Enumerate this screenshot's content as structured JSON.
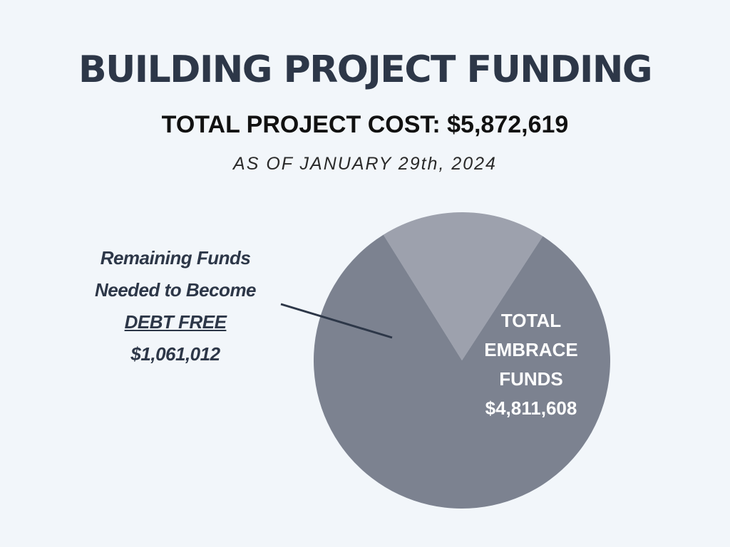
{
  "header": {
    "title": "BUILDING PROJECT FUNDING",
    "subtitle": "TOTAL PROJECT COST: $5,872,619",
    "date": "AS OF JANUARY 29th, 2024"
  },
  "chart_data": {
    "type": "pie",
    "total": 5872619,
    "slices": [
      {
        "name": "Remaining Funds Needed to Become DEBT FREE",
        "value": 1061012,
        "label_lines": [
          "Remaining Funds",
          "Needed to Become",
          "DEBT FREE",
          "$1,061,012"
        ],
        "color": "#9da1ad"
      },
      {
        "name": "TOTAL EMBRACE FUNDS",
        "value": 4811608,
        "label_lines": [
          "TOTAL",
          "EMBRACE",
          "FUNDS",
          "$4,811,608"
        ],
        "color": "#7c8290"
      }
    ]
  },
  "colors": {
    "background": "#f2f6fa",
    "title": "#2d3748",
    "leader_line": "#2d3748"
  }
}
